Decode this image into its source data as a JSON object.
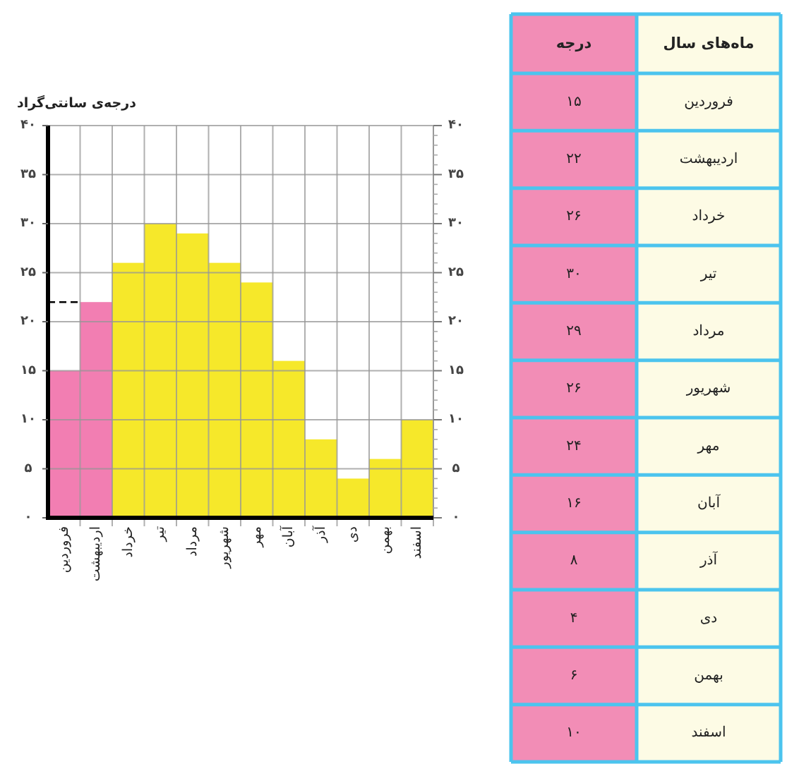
{
  "chart_data": [
    {
      "type": "bar",
      "ylabel": "درجه‌ی سانتی‌گراد",
      "categories": [
        "فروردین",
        "اردیبهشت",
        "خرداد",
        "تیر",
        "مرداد",
        "شهریور",
        "مهر",
        "آبان",
        "آذر",
        "دی",
        "بهمن",
        "اسفند"
      ],
      "values": [
        15,
        22,
        26,
        30,
        29,
        26,
        24,
        16,
        8,
        4,
        6,
        10
      ],
      "colors": [
        "#f27eb2",
        "#f27eb2",
        "#f6e82a",
        "#f6e82a",
        "#f6e82a",
        "#f6e82a",
        "#f6e82a",
        "#f6e82a",
        "#f6e82a",
        "#f6e82a",
        "#f6e82a",
        "#f6e82a"
      ],
      "ylim": [
        0,
        40
      ],
      "yticks": [
        {
          "value": 0,
          "label": "۰"
        },
        {
          "value": 5,
          "label": "۵"
        },
        {
          "value": 10,
          "label": "۱۰"
        },
        {
          "value": 15,
          "label": "۱۵"
        },
        {
          "value": 20,
          "label": "۲۰"
        },
        {
          "value": 25,
          "label": "۲۵"
        },
        {
          "value": 30,
          "label": "۳۰"
        },
        {
          "value": 35,
          "label": "۳۵"
        },
        {
          "value": 40,
          "label": "۴۰"
        }
      ],
      "y2lim": [
        0,
        40
      ],
      "y2ticks": [
        {
          "value": 0,
          "label": "۰"
        },
        {
          "value": 5,
          "label": "۵"
        },
        {
          "value": 10,
          "label": "۱۰"
        },
        {
          "value": 15,
          "label": "۱۵"
        },
        {
          "value": 20,
          "label": "۲۰"
        },
        {
          "value": 25,
          "label": "۲۵"
        },
        {
          "value": 30,
          "label": "۳۰"
        },
        {
          "value": 35,
          "label": "۳۵"
        },
        {
          "value": 40,
          "label": "۴۰"
        }
      ],
      "grid": true,
      "ref_lines": [
        {
          "axis": "y",
          "value": 22,
          "color": "#000000",
          "line_style": "dashed"
        }
      ]
    },
    {
      "type": "other",
      "annotations": [
        "ماه‌های سال",
        "درجه",
        "فروردین",
        "۱۵",
        "اردیبهشت",
        "۲۲",
        "خرداد",
        "۲۶",
        "تیر",
        "۳۰",
        "مرداد",
        "۲۹",
        "شهریور",
        "۲۶",
        "مهر",
        "۲۴",
        "آبان",
        "۱۶",
        "آذر",
        "۸",
        "دی",
        "۴",
        "بهمن",
        "۶",
        "اسفند",
        "۱۰"
      ]
    }
  ]
}
